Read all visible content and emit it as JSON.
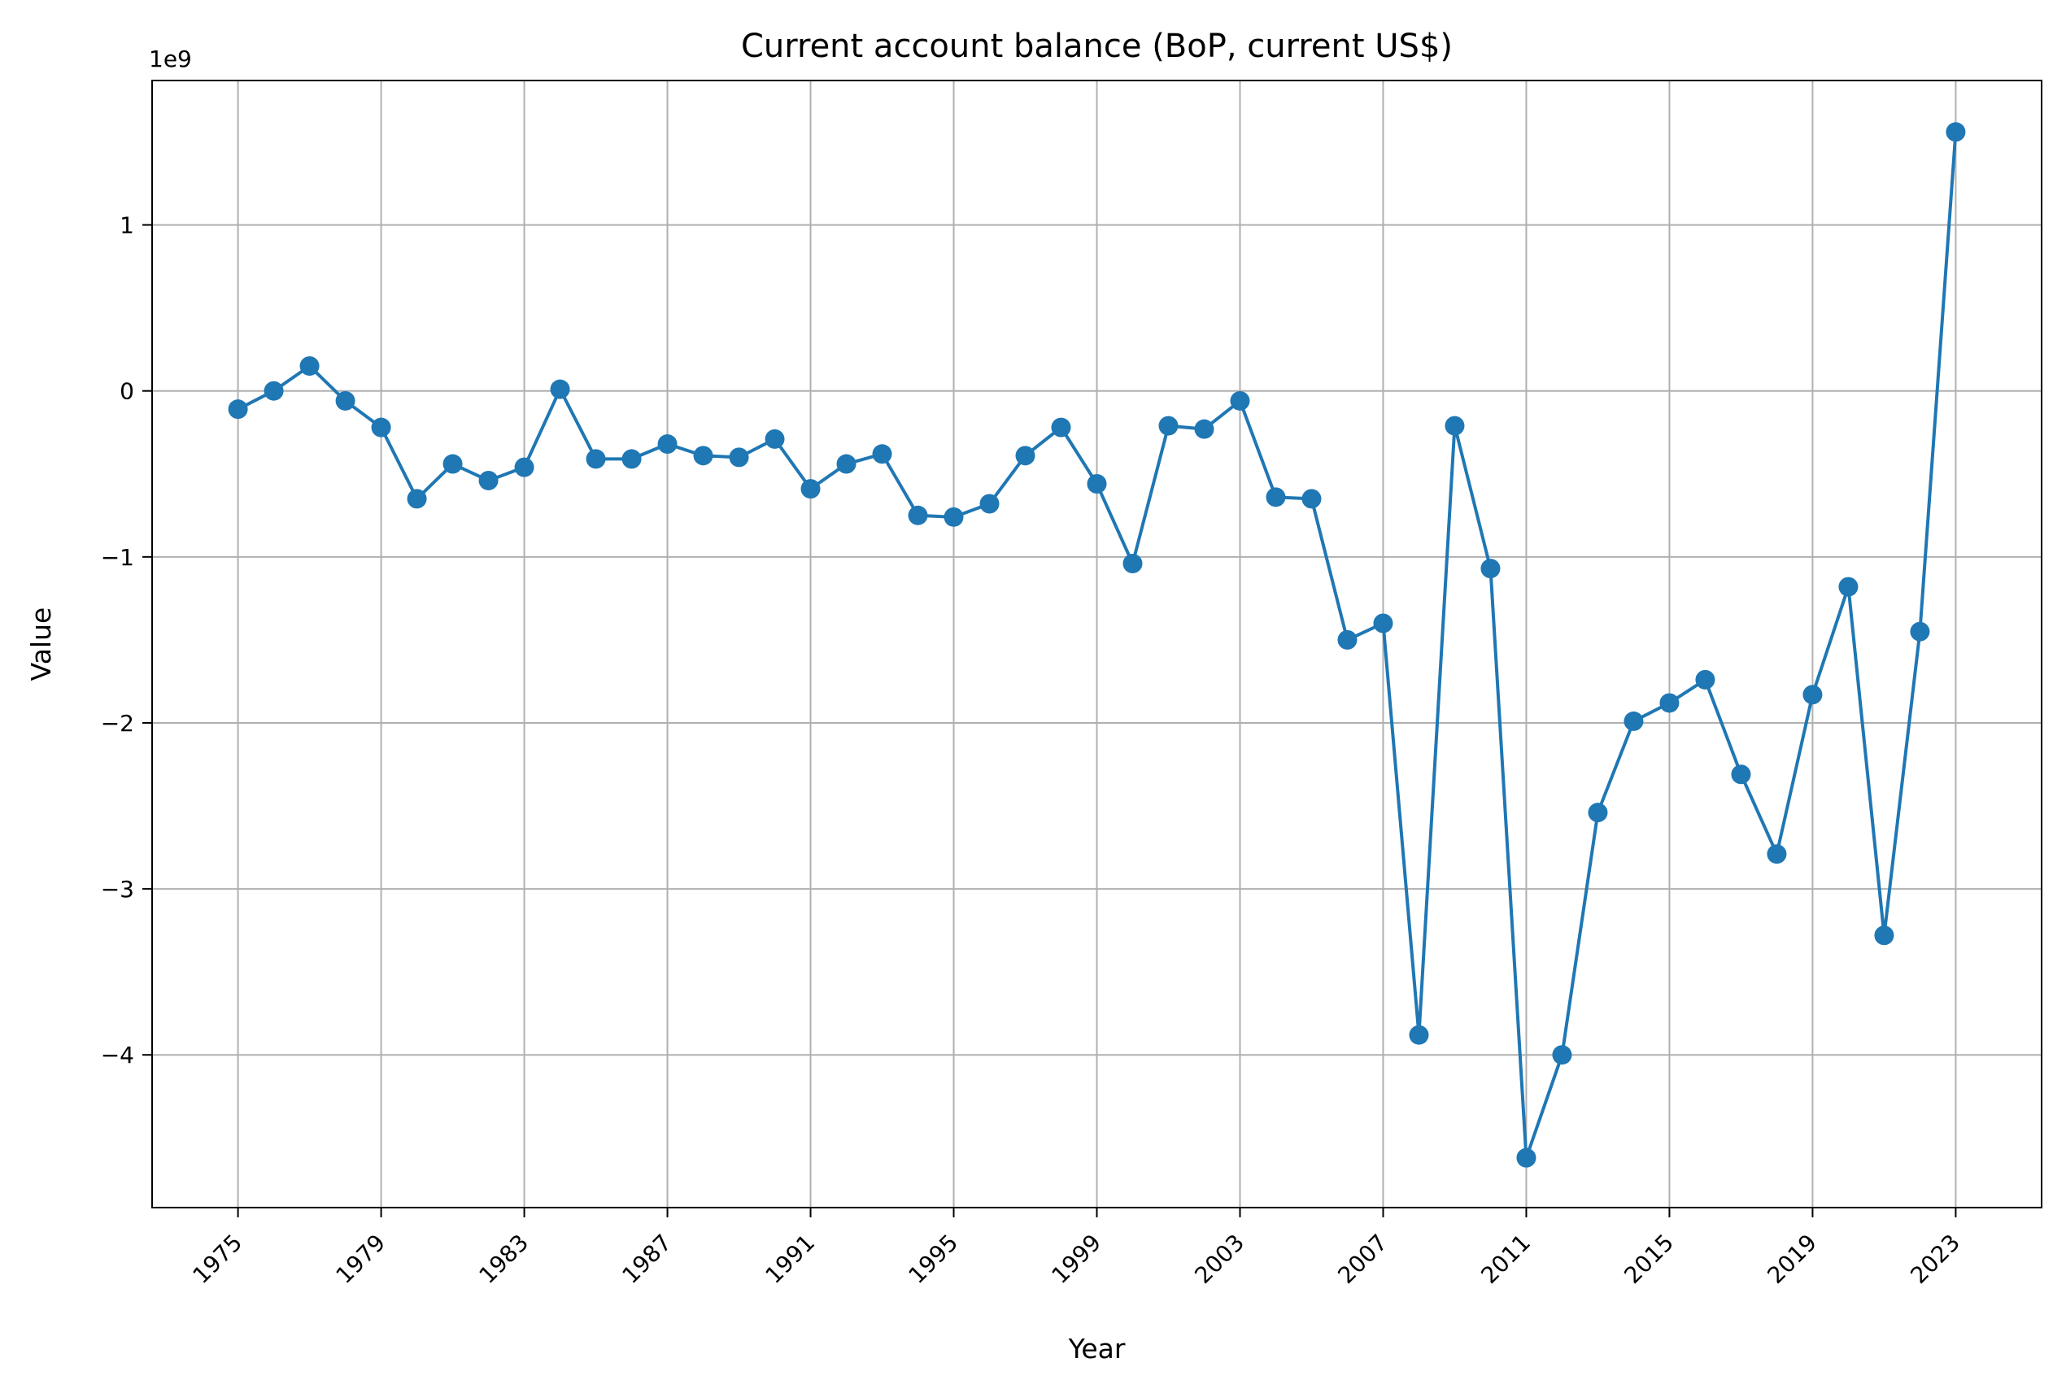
{
  "chart_data": {
    "type": "line",
    "title": "Current account balance (BoP, current US$)",
    "xlabel": "Year",
    "ylabel": "Value",
    "y_offset_label": "1e9",
    "xlim": [
      1972.6,
      2025.4
    ],
    "ylim": [
      -4.92,
      1.87
    ],
    "x_ticks": [
      1975,
      1979,
      1983,
      1987,
      1991,
      1995,
      1999,
      2003,
      2007,
      2011,
      2015,
      2019,
      2023
    ],
    "y_ticks": [
      1,
      0,
      -1,
      -2,
      -3,
      -4
    ],
    "y_tick_labels": [
      "1",
      "0",
      "−1",
      "−2",
      "−3",
      "−4"
    ],
    "grid": true,
    "line_color": "#1f77b4",
    "marker": "circle",
    "series": [
      {
        "x": [
          1975,
          1976,
          1977,
          1978,
          1979,
          1980,
          1981,
          1982,
          1983,
          1984,
          1985,
          1986,
          1987,
          1988,
          1989,
          1990,
          1991,
          1992,
          1993,
          1994,
          1995,
          1996,
          1997,
          1998,
          1999,
          2000,
          2001,
          2002,
          2003,
          2004,
          2005,
          2006,
          2007,
          2008,
          2009,
          2010,
          2011,
          2012,
          2013,
          2014,
          2015,
          2016,
          2017,
          2018,
          2019,
          2020,
          2021,
          2022,
          2023
        ],
        "values": [
          -0.11,
          0.0,
          0.15,
          -0.06,
          -0.22,
          -0.65,
          -0.44,
          -0.54,
          -0.46,
          0.01,
          -0.41,
          -0.41,
          -0.32,
          -0.39,
          -0.4,
          -0.29,
          -0.59,
          -0.44,
          -0.38,
          -0.75,
          -0.76,
          -0.68,
          -0.39,
          -0.22,
          -0.56,
          -1.04,
          -0.21,
          -0.23,
          -0.06,
          -0.64,
          -0.65,
          -1.5,
          -1.4,
          -3.88,
          -0.21,
          -1.07,
          -4.62,
          -4.0,
          -2.54,
          -1.99,
          -1.88,
          -1.74,
          -2.31,
          -2.79,
          -1.83,
          -1.18,
          -3.28,
          -1.45,
          1.56
        ]
      }
    ]
  }
}
